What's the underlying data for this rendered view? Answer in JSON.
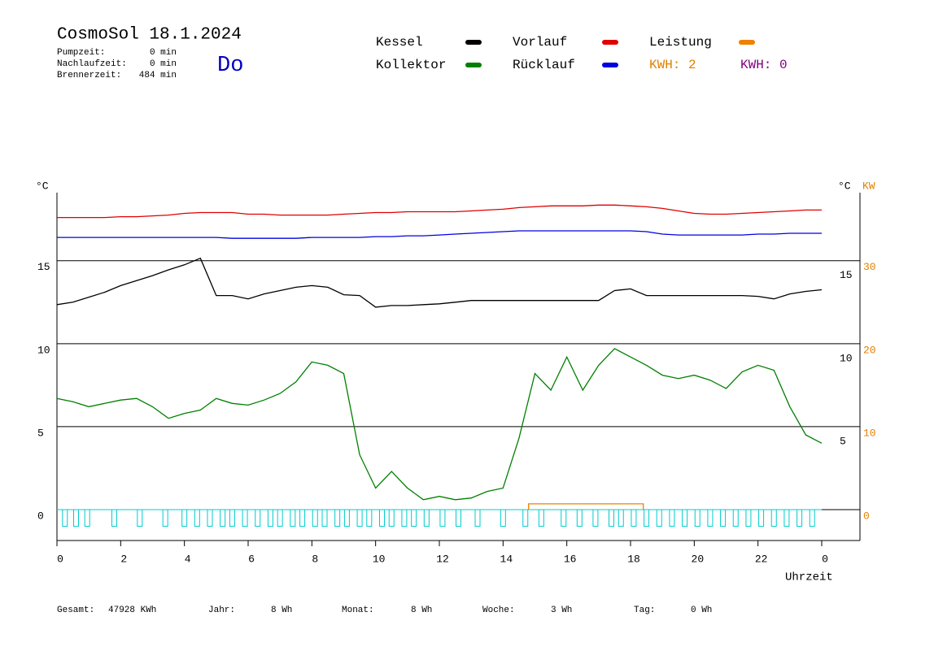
{
  "header": {
    "title": "CosmoSol 18.1.2024",
    "day": "Do",
    "stats": [
      [
        "Pumpzeit:",
        "0 min"
      ],
      [
        "Nachlaufzeit:",
        "0 min"
      ],
      [
        "Brennerzeit:",
        "484 min"
      ]
    ]
  },
  "footer": [
    [
      "Gesamt:",
      "47928 KWh"
    ],
    [
      "Jahr:",
      "8 Wh"
    ],
    [
      "Monat:",
      "8 Wh"
    ],
    [
      "Woche:",
      "3 Wh"
    ],
    [
      "Tag:",
      "0 Wh"
    ]
  ],
  "chart_data": {
    "type": "line",
    "y_label": "°C",
    "y2_label_unit": "°C",
    "y2_label": "KW",
    "x_label": "Uhrzeit",
    "xlim": [
      0,
      25.2
    ],
    "xticks": [
      0,
      2,
      4,
      6,
      8,
      10,
      12,
      14,
      16,
      18,
      20,
      22,
      {
        "value": 24,
        "label": "0"
      }
    ],
    "ylim": [
      -1.86,
      19.1
    ],
    "yticks": [
      0,
      5,
      10,
      15
    ],
    "yticks_right": [
      5,
      10,
      15
    ],
    "y2lim": [
      -3.72,
      38.2
    ],
    "y2ticks": [
      0,
      10,
      20,
      30
    ],
    "grid": true,
    "x": [
      0,
      0.5,
      1,
      1.5,
      2,
      2.5,
      3,
      3.5,
      4,
      4.5,
      5,
      5.5,
      6,
      6.5,
      7,
      7.5,
      8,
      8.5,
      9,
      9.5,
      10,
      10.5,
      11,
      11.5,
      12,
      12.5,
      13,
      13.5,
      14,
      14.5,
      15,
      15.5,
      16,
      16.5,
      17,
      17.5,
      18,
      18.5,
      19,
      19.5,
      20,
      20.5,
      21,
      21.5,
      22,
      22.5,
      23,
      23.5,
      24
    ],
    "series": [
      {
        "name": "Kessel",
        "color": "#000000",
        "values": [
          12.35,
          12.5,
          12.8,
          13.1,
          13.5,
          13.8,
          14.1,
          14.45,
          14.75,
          15.15,
          12.9,
          12.9,
          12.7,
          13.0,
          13.2,
          13.4,
          13.5,
          13.4,
          12.95,
          12.9,
          12.2,
          12.3,
          12.3,
          12.35,
          12.4,
          12.5,
          12.6,
          12.6,
          12.6,
          12.6,
          12.6,
          12.6,
          12.6,
          12.6,
          12.6,
          13.2,
          13.3,
          12.9,
          12.9,
          12.9,
          12.9,
          12.9,
          12.9,
          12.9,
          12.85,
          12.7,
          13.0,
          13.15,
          13.25
        ]
      },
      {
        "name": "Kollektor",
        "color": "#008000",
        "values": [
          6.7,
          6.5,
          6.2,
          6.4,
          6.6,
          6.7,
          6.2,
          5.5,
          5.8,
          6.0,
          6.7,
          6.4,
          6.3,
          6.6,
          7.0,
          7.7,
          8.9,
          8.7,
          8.2,
          3.3,
          1.3,
          2.3,
          1.3,
          0.6,
          0.8,
          0.6,
          0.7,
          1.1,
          1.3,
          4.3,
          8.2,
          7.2,
          9.2,
          7.2,
          8.7,
          9.7,
          9.2,
          8.7,
          8.1,
          7.9,
          8.1,
          7.8,
          7.3,
          8.3,
          8.7,
          8.4,
          6.2,
          4.5,
          4.0
        ]
      },
      {
        "name": "Vorlauf",
        "color": "#e00000",
        "values": [
          17.6,
          17.6,
          17.6,
          17.6,
          17.65,
          17.65,
          17.7,
          17.75,
          17.85,
          17.9,
          17.9,
          17.9,
          17.8,
          17.8,
          17.75,
          17.75,
          17.75,
          17.75,
          17.8,
          17.85,
          17.9,
          17.9,
          17.95,
          17.95,
          17.95,
          17.95,
          18.0,
          18.05,
          18.1,
          18.2,
          18.25,
          18.3,
          18.3,
          18.3,
          18.35,
          18.35,
          18.3,
          18.25,
          18.15,
          18.0,
          17.85,
          17.8,
          17.8,
          17.85,
          17.9,
          17.95,
          18.0,
          18.05,
          18.05
        ]
      },
      {
        "name": "Rücklauf",
        "color": "#0000e0",
        "values": [
          16.4,
          16.4,
          16.4,
          16.4,
          16.4,
          16.4,
          16.4,
          16.4,
          16.4,
          16.4,
          16.4,
          16.35,
          16.35,
          16.35,
          16.35,
          16.35,
          16.4,
          16.4,
          16.4,
          16.4,
          16.45,
          16.45,
          16.5,
          16.5,
          16.55,
          16.6,
          16.65,
          16.7,
          16.75,
          16.8,
          16.8,
          16.8,
          16.8,
          16.8,
          16.8,
          16.8,
          16.8,
          16.75,
          16.6,
          16.55,
          16.55,
          16.55,
          16.55,
          16.55,
          16.6,
          16.6,
          16.65,
          16.65,
          16.65
        ]
      },
      {
        "name": "Leistung",
        "color": "#f08000",
        "axis": "y2",
        "x": [
          14.8,
          14.8,
          18.4,
          18.4
        ],
        "values": [
          0,
          0.7,
          0.7,
          0
        ]
      }
    ],
    "kwh_labels": [
      {
        "text": "KWH: 2",
        "color": "#e08000"
      },
      {
        "text": "KWH: 0",
        "color": "#800080"
      }
    ],
    "pulses": {
      "color": "#00cccc",
      "x": [
        0.25,
        0.6,
        0.95,
        1.8,
        2.6,
        3.4,
        4.0,
        4.4,
        4.8,
        5.2,
        5.5,
        5.9,
        6.3,
        6.7,
        7.0,
        7.4,
        7.7,
        8.1,
        8.4,
        8.8,
        9.1,
        9.5,
        9.8,
        10.2,
        10.5,
        10.9,
        11.2,
        11.6,
        12.1,
        12.6,
        13.2,
        14.0,
        14.7,
        15.2,
        15.9,
        16.4,
        16.9,
        17.4,
        17.7,
        18.1,
        18.5,
        18.9,
        19.3,
        19.7,
        20.1,
        20.5,
        20.9,
        21.3,
        21.7,
        22.1,
        22.5,
        22.9,
        23.3,
        23.7
      ]
    }
  }
}
